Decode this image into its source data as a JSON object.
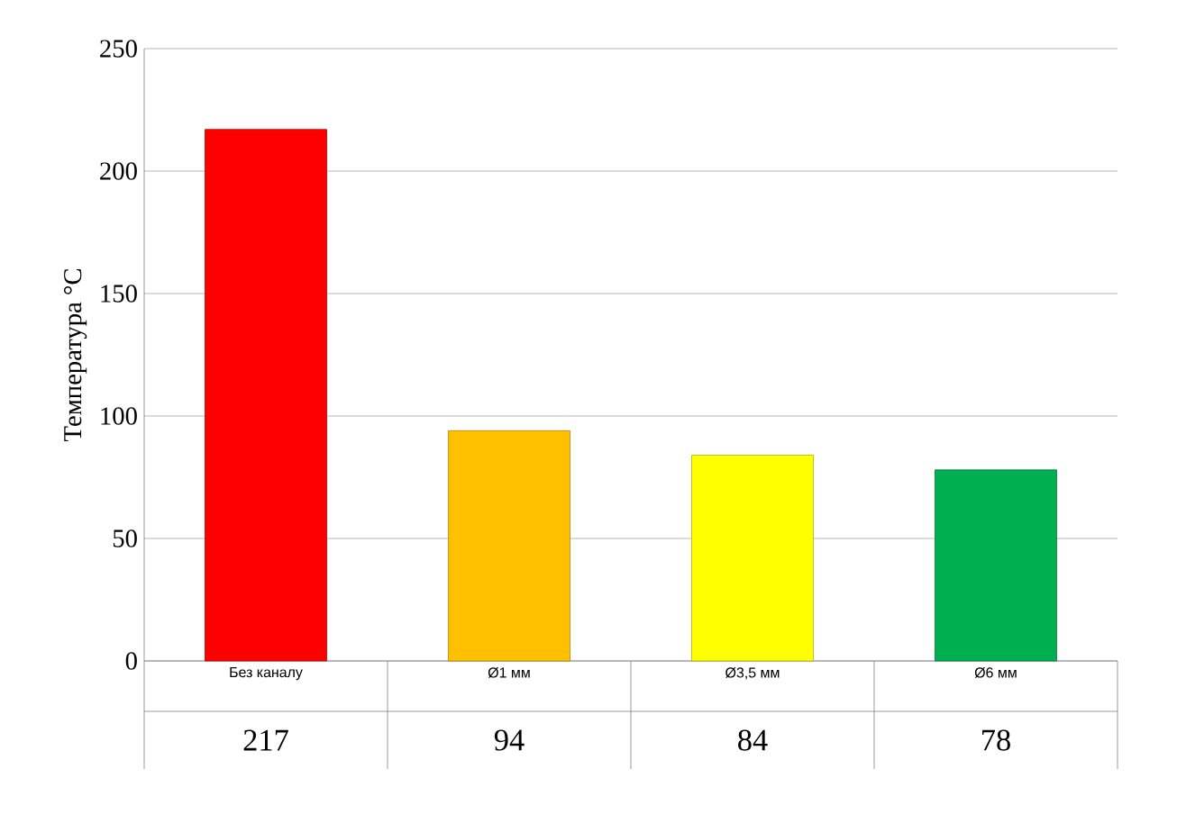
{
  "chart_data": {
    "type": "bar",
    "ylabel": "Температура °C",
    "categories": [
      "Без каналу",
      "Ø1 мм",
      "Ø3,5 мм",
      "Ø6 мм"
    ],
    "values": [
      217,
      94,
      84,
      78
    ],
    "colors": [
      "#ff0000",
      "#ffc000",
      "#ffff00",
      "#00b050"
    ],
    "ylim": [
      0,
      250
    ],
    "yticks": [
      0,
      50,
      100,
      150,
      200,
      250
    ],
    "grid": "y",
    "data_labels": true
  }
}
